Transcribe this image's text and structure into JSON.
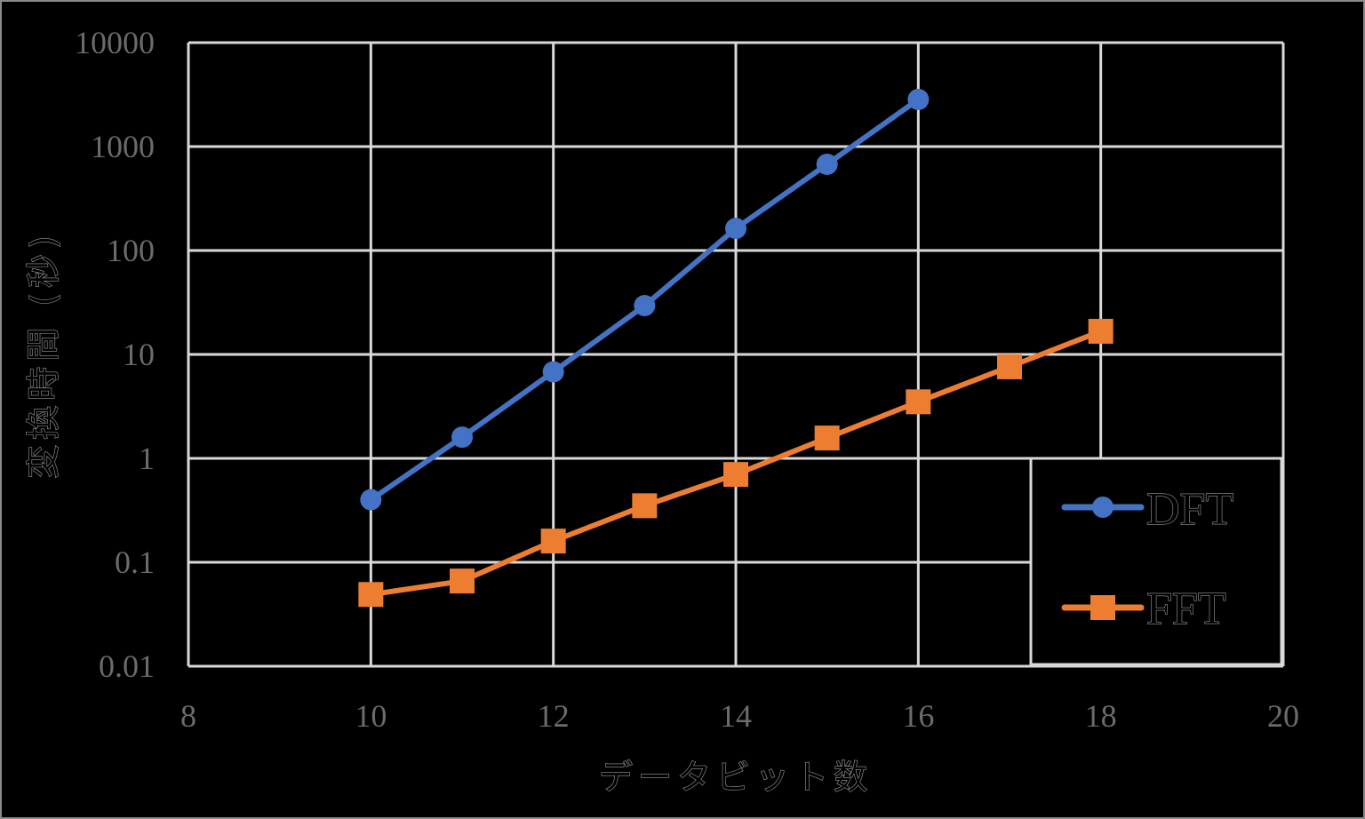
{
  "chart_data": {
    "type": "line",
    "title": "",
    "xlabel": "データビット数",
    "ylabel": "変換時間 (秒)",
    "xscale": "linear",
    "yscale": "log",
    "xlim": [
      8,
      20
    ],
    "ylim": [
      0.01,
      10000
    ],
    "xticks": [
      "8",
      "10",
      "12",
      "14",
      "16",
      "18",
      "20"
    ],
    "yticks": [
      "0.01",
      "0.1",
      "1",
      "10",
      "100",
      "1000",
      "10000"
    ],
    "grid": true,
    "legend_position": "lower right",
    "series": [
      {
        "name": "DFT",
        "color": "#4472C4",
        "marker": "circle",
        "x": [
          10,
          11,
          12,
          13,
          14,
          15,
          16
        ],
        "values": [
          0.4,
          1.6,
          6.8,
          29.5,
          163,
          675,
          2840
        ]
      },
      {
        "name": "FFT",
        "color": "#ED7D31",
        "marker": "square",
        "x": [
          10,
          11,
          12,
          13,
          14,
          15,
          16,
          17,
          18
        ],
        "values": [
          0.049,
          0.066,
          0.16,
          0.35,
          0.7,
          1.57,
          3.5,
          7.6,
          16.7
        ]
      }
    ]
  },
  "colors": {
    "background": "#000000",
    "gridline": "#d9d9d9",
    "tick_label": "#6b6b6b",
    "frame_border": "#8a8a8a"
  },
  "legend": {
    "items": [
      {
        "label": "DFT"
      },
      {
        "label": "FFT"
      }
    ]
  }
}
